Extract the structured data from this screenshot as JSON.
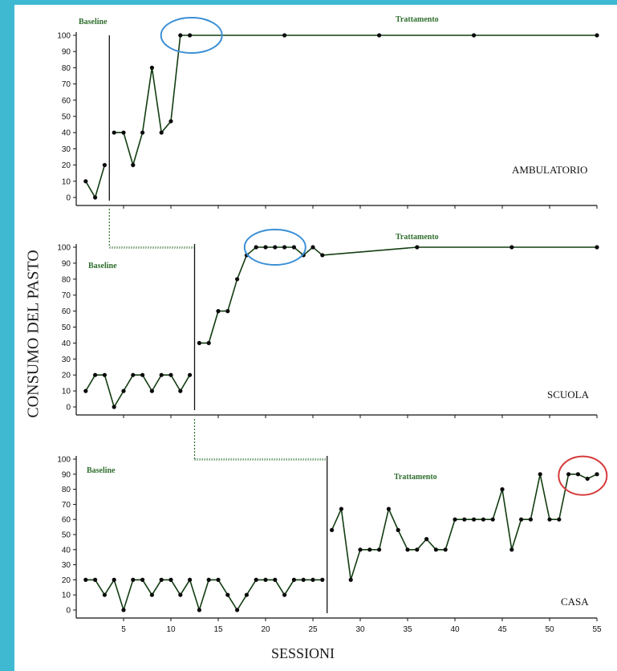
{
  "page": {
    "y_axis_label": "CONSUMO DEL PASTO",
    "x_axis_label": "SESSIONI"
  },
  "chart_data": [
    {
      "type": "line",
      "title": "AMBULATORIO",
      "xlim": [
        0,
        55
      ],
      "ylim": [
        0,
        100
      ],
      "yticks": [
        0,
        10,
        20,
        30,
        40,
        50,
        60,
        70,
        80,
        90,
        100
      ],
      "phase_change": 3.5,
      "phases": [
        "Baseline",
        "Trattamento"
      ],
      "series": [
        {
          "x": [
            1,
            2,
            3
          ],
          "y": [
            10,
            0,
            20
          ]
        },
        {
          "x": [
            4,
            5,
            6,
            7,
            8,
            9,
            10,
            11,
            12,
            22,
            32,
            42,
            55
          ],
          "y": [
            40,
            40,
            20,
            40,
            80,
            40,
            47,
            100,
            100,
            100,
            100,
            100,
            100
          ]
        }
      ],
      "highlight": {
        "x": 11.5,
        "y": 100,
        "color": "#3a8fd6"
      }
    },
    {
      "type": "line",
      "title": "SCUOLA",
      "xlim": [
        0,
        55
      ],
      "ylim": [
        0,
        100
      ],
      "yticks": [
        0,
        10,
        20,
        30,
        40,
        50,
        60,
        70,
        80,
        90,
        100
      ],
      "phase_change": 12.5,
      "phases": [
        "Baseline",
        "Trattamento"
      ],
      "series": [
        {
          "x": [
            1,
            2,
            3,
            4,
            5,
            6,
            7,
            8,
            9,
            10,
            11,
            12
          ],
          "y": [
            10,
            20,
            20,
            0,
            10,
            20,
            20,
            10,
            20,
            20,
            10,
            20
          ]
        },
        {
          "x": [
            13,
            14,
            15,
            16,
            17,
            18,
            19,
            20,
            21,
            22,
            23,
            24,
            25,
            26,
            36,
            46,
            55
          ],
          "y": [
            40,
            40,
            60,
            60,
            80,
            95,
            100,
            100,
            100,
            100,
            100,
            95,
            100,
            95,
            100,
            100,
            100
          ]
        }
      ],
      "highlight": {
        "x": 21,
        "y": 100,
        "color": "#3a8fd6"
      }
    },
    {
      "type": "line",
      "title": "CASA",
      "xlim": [
        0,
        55
      ],
      "ylim": [
        0,
        100
      ],
      "yticks": [
        0,
        10,
        20,
        30,
        40,
        50,
        60,
        70,
        80,
        90,
        100
      ],
      "xticks": [
        5,
        10,
        15,
        20,
        25,
        30,
        35,
        40,
        45,
        50,
        55
      ],
      "phase_change": 26.5,
      "phases": [
        "Baseline",
        "Trattamento"
      ],
      "series": [
        {
          "x": [
            1,
            2,
            3,
            4,
            5,
            6,
            7,
            8,
            9,
            10,
            11,
            12,
            13,
            14,
            15,
            16,
            17,
            18,
            19,
            20,
            21,
            22,
            23,
            24,
            25,
            26
          ],
          "y": [
            20,
            20,
            10,
            20,
            0,
            20,
            20,
            10,
            20,
            20,
            10,
            20,
            0,
            20,
            20,
            10,
            0,
            10,
            20,
            20,
            20,
            10,
            20,
            20,
            20,
            20
          ]
        },
        {
          "x": [
            27,
            28,
            29,
            30,
            31,
            32,
            33,
            34,
            35,
            36,
            37,
            38,
            39,
            40,
            41,
            42,
            43,
            44,
            45,
            46,
            47,
            48,
            49,
            50,
            51,
            52,
            53,
            54,
            55
          ],
          "y": [
            53,
            67,
            20,
            40,
            40,
            40,
            67,
            53,
            40,
            40,
            47,
            40,
            40,
            60,
            60,
            60,
            60,
            60,
            80,
            40,
            60,
            60,
            90,
            60,
            60,
            90,
            90,
            87,
            90
          ]
        }
      ],
      "highlight": {
        "x": 53.5,
        "y": 89,
        "color": "#d63a3a"
      }
    }
  ]
}
